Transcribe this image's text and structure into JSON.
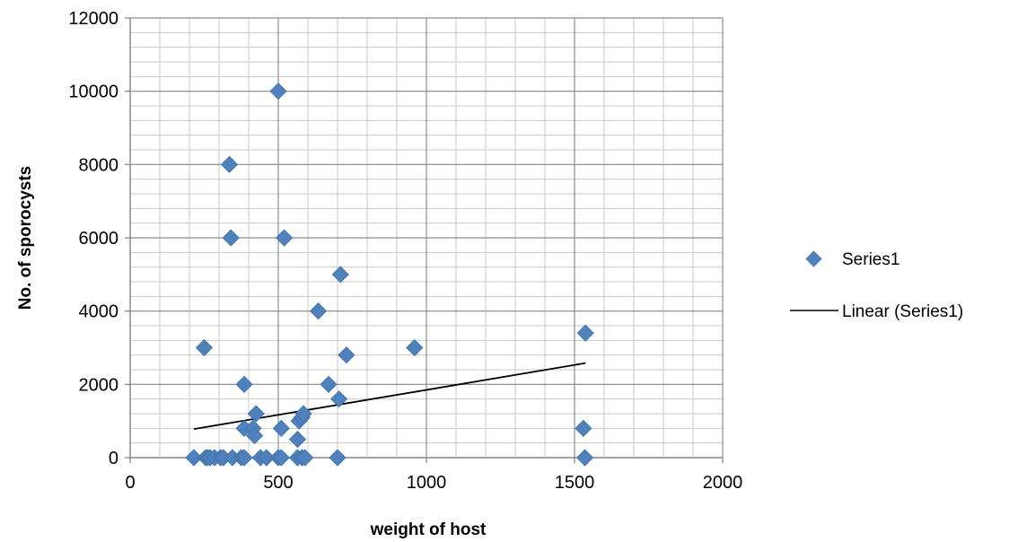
{
  "chart_data": {
    "type": "scatter",
    "title": "",
    "xlabel": "weight of host",
    "ylabel": "No. of sporocysts",
    "xlim": [
      0,
      2000
    ],
    "ylim": [
      0,
      12000
    ],
    "x_ticks": [
      "0",
      "500",
      "1000",
      "1500",
      "2000"
    ],
    "y_ticks": [
      "0",
      "2000",
      "4000",
      "6000",
      "8000",
      "10000",
      "12000"
    ],
    "grid": true,
    "minor_grid": true,
    "legend_position": "right",
    "series": [
      {
        "name": "Series1",
        "marker": "diamond",
        "color": "#4f81bd",
        "points": [
          [
            215,
            0
          ],
          [
            255,
            0
          ],
          [
            262,
            0
          ],
          [
            270,
            0
          ],
          [
            285,
            0
          ],
          [
            305,
            0
          ],
          [
            315,
            0
          ],
          [
            345,
            0
          ],
          [
            375,
            0
          ],
          [
            385,
            0
          ],
          [
            440,
            0
          ],
          [
            460,
            0
          ],
          [
            500,
            0
          ],
          [
            510,
            0
          ],
          [
            565,
            0
          ],
          [
            580,
            0
          ],
          [
            590,
            0
          ],
          [
            700,
            0
          ],
          [
            1535,
            0
          ],
          [
            250,
            3000
          ],
          [
            335,
            8000
          ],
          [
            340,
            6000
          ],
          [
            385,
            2000
          ],
          [
            385,
            800
          ],
          [
            415,
            800
          ],
          [
            420,
            600
          ],
          [
            425,
            1200
          ],
          [
            500,
            10000
          ],
          [
            510,
            800
          ],
          [
            520,
            6000
          ],
          [
            565,
            500
          ],
          [
            570,
            1000
          ],
          [
            580,
            1100
          ],
          [
            585,
            1200
          ],
          [
            635,
            4000
          ],
          [
            670,
            2000
          ],
          [
            705,
            1600
          ],
          [
            710,
            5000
          ],
          [
            730,
            2800
          ],
          [
            960,
            3000
          ],
          [
            1530,
            800
          ],
          [
            1537,
            3400
          ]
        ]
      }
    ],
    "trendline": {
      "name": "Linear (Series1)",
      "color": "#000000",
      "points": [
        [
          215,
          780
        ],
        [
          1537,
          2580
        ]
      ]
    }
  }
}
